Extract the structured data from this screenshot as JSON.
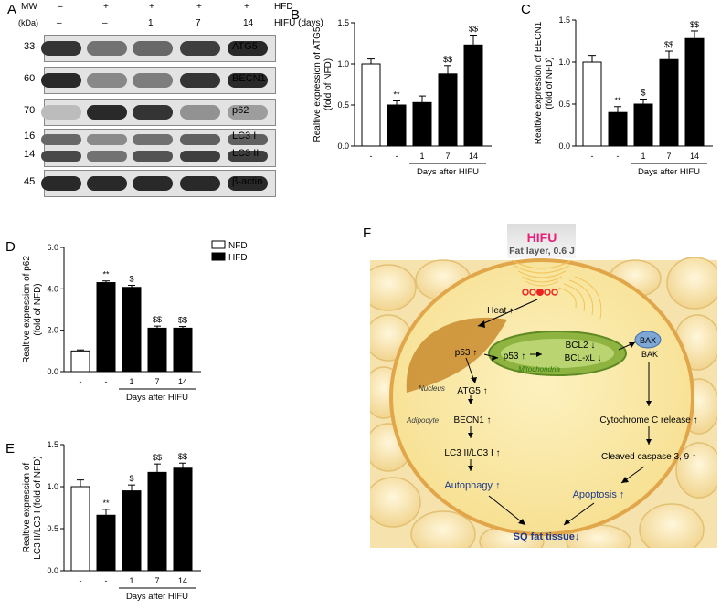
{
  "panel_letters": {
    "A": "A",
    "B": "B",
    "C": "C",
    "D": "D",
    "E": "E",
    "F": "F"
  },
  "blot": {
    "mw_label": "MW",
    "kda_label": "(kDa)",
    "hfd_label": "HFD",
    "hifu_label": "HIFU (days)",
    "hfd_signs": [
      "–",
      "+",
      "+",
      "+",
      "+"
    ],
    "hifu_signs": [
      "–",
      "–",
      "1",
      "7",
      "14"
    ],
    "rows": [
      {
        "mw": "33",
        "proteins": [
          "ATG5"
        ],
        "intensity": [
          0.85,
          0.55,
          0.6,
          0.8,
          0.9
        ]
      },
      {
        "mw": "60",
        "proteins": [
          "BECN1"
        ],
        "intensity": [
          0.9,
          0.45,
          0.5,
          0.85,
          0.9
        ]
      },
      {
        "mw": "70",
        "proteins": [
          "p62"
        ],
        "intensity": [
          0.2,
          0.9,
          0.85,
          0.4,
          0.35
        ]
      },
      {
        "mw": "16",
        "mw2": "14",
        "proteins": [
          "LC3 I",
          "LC3 II"
        ],
        "intensity": [
          0.75,
          0.55,
          0.7,
          0.8,
          0.8
        ]
      },
      {
        "mw": "45",
        "proteins": [
          "β-actin"
        ],
        "intensity": [
          0.9,
          0.9,
          0.9,
          0.9,
          0.9
        ]
      }
    ]
  },
  "chart_data": [
    {
      "id": "B",
      "type": "bar",
      "categories": [
        "-",
        "-",
        "1",
        "7",
        "14"
      ],
      "values": [
        1.0,
        0.5,
        0.53,
        0.88,
        1.23
      ],
      "errors": [
        0.06,
        0.05,
        0.08,
        0.1,
        0.12
      ],
      "fills": [
        "white",
        "black",
        "black",
        "black",
        "black"
      ],
      "sig": [
        "",
        "**",
        "",
        "$$",
        "$$"
      ],
      "ylabel": "Realtive expression of ATG5 (fold of NFD)",
      "ylabel_lines": [
        "Realtive expression of ATG5",
        "(fold of NFD)"
      ],
      "xlabel": "Days after HIFU",
      "ylim": [
        0,
        1.5
      ],
      "yticks": [
        "0.0",
        "0.5",
        "1.0",
        "1.5"
      ]
    },
    {
      "id": "C",
      "type": "bar",
      "categories": [
        "-",
        "-",
        "1",
        "7",
        "14"
      ],
      "values": [
        1.0,
        0.4,
        0.5,
        1.03,
        1.28
      ],
      "errors": [
        0.08,
        0.07,
        0.06,
        0.1,
        0.09
      ],
      "fills": [
        "white",
        "black",
        "black",
        "black",
        "black"
      ],
      "sig": [
        "",
        "**",
        "$",
        "$$",
        "$$"
      ],
      "ylabel": "Realtive expression of BECN1 (fold of NFD)",
      "ylabel_lines": [
        "Realtive expression of BECN1",
        "(fold of NFD)"
      ],
      "xlabel": "Days after HIFU",
      "ylim": [
        0,
        1.5
      ],
      "yticks": [
        "0.0",
        "0.5",
        "1.0",
        "1.5"
      ]
    },
    {
      "id": "D",
      "type": "bar",
      "categories": [
        "-",
        "-",
        "1",
        "7",
        "14"
      ],
      "values": [
        1.0,
        4.3,
        4.07,
        2.1,
        2.1
      ],
      "errors": [
        0.05,
        0.08,
        0.1,
        0.1,
        0.08
      ],
      "fills": [
        "white",
        "black",
        "black",
        "black",
        "black"
      ],
      "sig": [
        "",
        "**",
        "$",
        "$$",
        "$$"
      ],
      "ylabel": "Realtive expression of p62 (fold of NFD)",
      "ylabel_lines": [
        "Realtive expression of p62",
        "(fold of NFD)"
      ],
      "xlabel": "Days after HIFU",
      "ylim": [
        0,
        6
      ],
      "yticks": [
        "0.0",
        "2.0",
        "4.0",
        "6.0"
      ],
      "legend": [
        {
          "name": "NFD",
          "fill": "white"
        },
        {
          "name": "HFD",
          "fill": "black"
        }
      ],
      "legend_position": "top-right"
    },
    {
      "id": "E",
      "type": "bar",
      "categories": [
        "-",
        "-",
        "1",
        "7",
        "14"
      ],
      "values": [
        1.0,
        0.66,
        0.95,
        1.17,
        1.22
      ],
      "errors": [
        0.08,
        0.07,
        0.07,
        0.1,
        0.06
      ],
      "fills": [
        "white",
        "black",
        "black",
        "black",
        "black"
      ],
      "sig": [
        "",
        "**",
        "$",
        "$$",
        "$$"
      ],
      "ylabel": "Realtive expression of LC3 II/LC3 I (fold of NFD)",
      "ylabel_lines": [
        "Realtive expression of",
        "LC3 II/LC3 I (fold of NFD)"
      ],
      "xlabel": "Days after HIFU",
      "ylim": [
        0,
        1.5
      ],
      "yticks": [
        "0.0",
        "0.5",
        "1.0",
        "1.5"
      ]
    }
  ],
  "schematic": {
    "hifu": "HIFU",
    "fat_layer": "Fat layer, 0.6 J",
    "heat": "Heat ↑",
    "nucleus": "Nucleus",
    "adipocyte": "Adipocyte",
    "mitochondria": "Mitochondria",
    "p53_nucleus": "p53 ↑",
    "p53_mito": "p53 ↑",
    "bcl2": "BCL2 ↓",
    "bclxl": "BCL-xL ↓",
    "bax": "BAX",
    "bak": "BAK",
    "atg5": "ATG5 ↑",
    "becn1": "BECN1 ↑",
    "lc3": "LC3 II/LC3 I ↑",
    "autophagy": "Autophagy ↑",
    "cytc": "Cytochrome C release ↑",
    "caspase": "Cleaved caspase 3, 9 ↑",
    "apoptosis": "Apoptosis ↑",
    "result": "SQ fat tissue↓",
    "colors": {
      "hifu": "#e8207a",
      "blue": "#1f3a8a",
      "mito": "#8fb341",
      "nucleus": "#c98b2e",
      "cell": "#fbeaa6",
      "fat": "#f8e7b6"
    }
  }
}
